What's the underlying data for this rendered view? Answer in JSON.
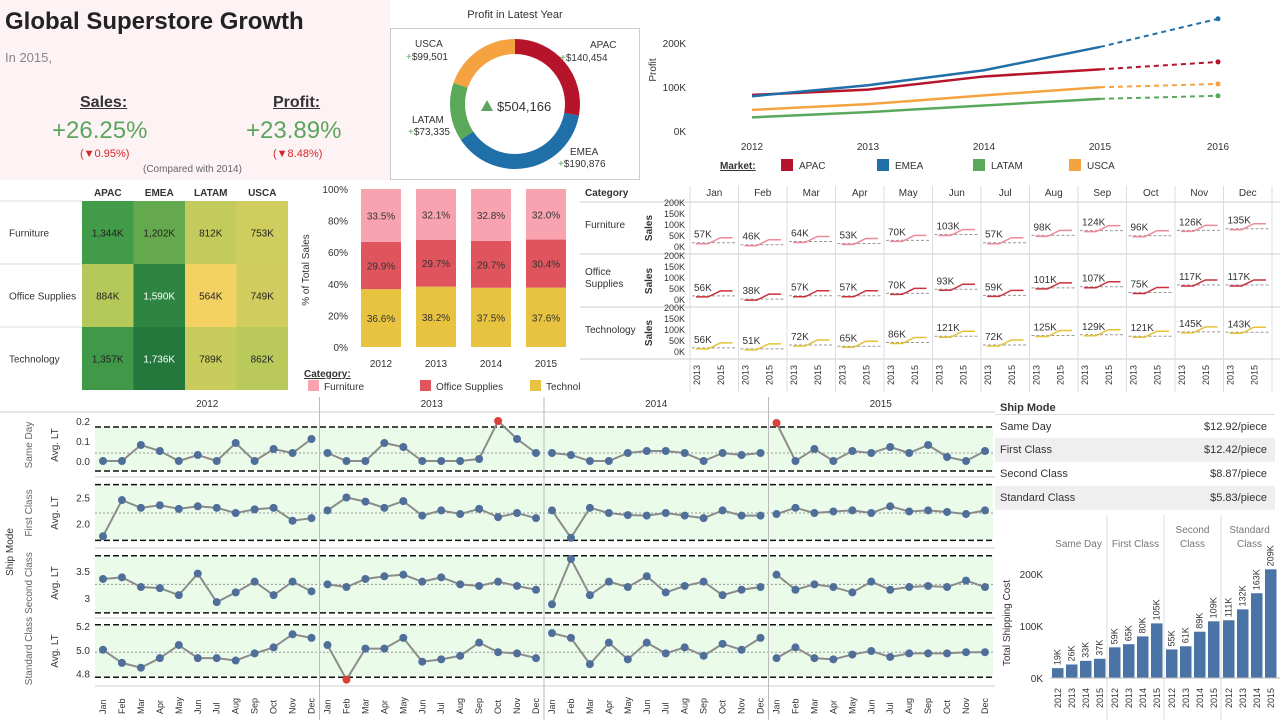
{
  "header": {
    "title": "Global Superstore Growth",
    "subtitle": "In 2015,",
    "sales_label": "Sales:",
    "sales_value": "+26.25%",
    "sales_change": "(▼0.95%)",
    "profit_label": "Profit:",
    "profit_value": "+23.89%",
    "profit_change": "(▼8.48%)",
    "note": "(Compared with 2014)"
  },
  "colors": {
    "APAC": "#b5142a",
    "EMEA": "#1f6fa8",
    "LATAM": "#5aa95a",
    "USCA": "#f4a340",
    "furniture": "#f9a3b0",
    "office": "#e0555d",
    "technology": "#e8c33f",
    "positive": "#5ba55e",
    "negative": "#d62728"
  },
  "chart_data": [
    {
      "id": "donut",
      "type": "pie",
      "title": "Profit in Latest Year",
      "center_label": "$504,166",
      "slices": [
        {
          "name": "APAC",
          "label": "+$140,454",
          "value": 140454
        },
        {
          "name": "EMEA",
          "label": "+$190,876",
          "value": 190876
        },
        {
          "name": "LATAM",
          "label": "+$73,335",
          "value": 73335
        },
        {
          "name": "USCA",
          "label": "+$99,501",
          "value": 99501
        }
      ]
    },
    {
      "id": "profit_trend",
      "type": "line",
      "ylabel": "Profit",
      "x": [
        "2012",
        "2013",
        "2014",
        "2015",
        "2016"
      ],
      "yticks": [
        "0K",
        "100K",
        "200K"
      ],
      "ylim": [
        0,
        260000
      ],
      "legend_title": "Market:",
      "series": [
        {
          "name": "APAC",
          "values": [
            82000,
            94000,
            124000,
            140000,
            157000
          ]
        },
        {
          "name": "EMEA",
          "values": [
            79000,
            104000,
            138000,
            191000,
            255000
          ]
        },
        {
          "name": "LATAM",
          "values": [
            31000,
            43000,
            58000,
            73000,
            80000
          ]
        },
        {
          "name": "USCA",
          "values": [
            48000,
            61000,
            81000,
            99500,
            107000
          ]
        }
      ],
      "forecast_from": "2015"
    },
    {
      "id": "heatmap",
      "type": "heatmap",
      "columns": [
        "APAC",
        "EMEA",
        "LATAM",
        "USCA"
      ],
      "rows": [
        "Furniture",
        "Office Supplies",
        "Technology"
      ],
      "labels": [
        [
          "1,344K",
          "1,202K",
          "812K",
          "753K"
        ],
        [
          "884K",
          "1,590K",
          "564K",
          "749K"
        ],
        [
          "1,357K",
          "1,736K",
          "789K",
          "862K"
        ]
      ],
      "values": [
        [
          1344,
          1202,
          812,
          753
        ],
        [
          884,
          1590,
          564,
          749
        ],
        [
          1357,
          1736,
          789,
          862
        ]
      ]
    },
    {
      "id": "stacked",
      "type": "bar",
      "ylabel": "% of Total Sales",
      "categories": [
        "2012",
        "2013",
        "2014",
        "2015"
      ],
      "yticks": [
        "0%",
        "20%",
        "40%",
        "60%",
        "80%",
        "100%"
      ],
      "legend_title": "Category:",
      "series": [
        {
          "name": "Technology",
          "values": [
            36.6,
            38.2,
            37.5,
            37.6
          ]
        },
        {
          "name": "Office Supplies",
          "values": [
            29.9,
            29.7,
            29.7,
            30.4
          ]
        },
        {
          "name": "Furniture",
          "values": [
            33.5,
            32.1,
            32.8,
            32.0
          ]
        }
      ]
    },
    {
      "id": "small_multiples",
      "type": "line",
      "header": "Category",
      "ylabel": "Sales",
      "months": [
        "Jan",
        "Feb",
        "Mar",
        "Apr",
        "May",
        "Jun",
        "Jul",
        "Aug",
        "Sep",
        "Oct",
        "Nov",
        "Dec"
      ],
      "xticks": [
        "2013",
        "2015"
      ],
      "yticks": [
        "200K",
        "150K",
        "100K",
        "50K",
        "0K"
      ],
      "rows": [
        {
          "name": "Furniture",
          "labels": [
            "57K",
            "46K",
            "64K",
            "53K",
            "70K",
            "103K",
            "57K",
            "98K",
            "124K",
            "96K",
            "126K",
            "135K"
          ]
        },
        {
          "name": "Office Supplies",
          "labels": [
            "56K",
            "38K",
            "57K",
            "57K",
            "70K",
            "93K",
            "59K",
            "101K",
            "107K",
            "75K",
            "117K",
            "117K"
          ]
        },
        {
          "name": "Technology",
          "labels": [
            "56K",
            "51K",
            "72K",
            "65K",
            "86K",
            "121K",
            "72K",
            "125K",
            "129K",
            "121K",
            "145K",
            "143K"
          ]
        }
      ]
    },
    {
      "id": "control",
      "type": "line",
      "ylabel_group": "Ship Mode",
      "ylabel": "Avg. LT",
      "years": [
        "2012",
        "2013",
        "2014",
        "2015"
      ],
      "months": [
        "Jan",
        "Feb",
        "Mar",
        "Apr",
        "May",
        "Jun",
        "Jul",
        "Aug",
        "Sep",
        "Oct",
        "Nov",
        "Dec"
      ],
      "rows": [
        {
          "name": "Same Day",
          "yticks": [
            "0.2",
            "0.1",
            "0.0"
          ],
          "ylim": [
            -0.06,
            0.22
          ],
          "ucl": 0.17,
          "lcl": -0.05,
          "mean": 0.04,
          "values": [
            [
              0.0,
              0.0,
              0.08,
              0.05,
              0.0,
              0.03,
              0.0,
              0.09,
              0.0,
              0.06,
              0.04,
              0.11
            ],
            [
              0.04,
              0.0,
              0.0,
              0.09,
              0.07,
              0.0,
              0.0,
              0.0,
              0.01,
              0.2,
              0.11,
              0.04
            ],
            [
              0.04,
              0.03,
              0.0,
              0.0,
              0.04,
              0.05,
              0.05,
              0.04,
              0.0,
              0.04,
              0.03,
              0.04
            ],
            [
              0.19,
              0.0,
              0.06,
              0.0,
              0.05,
              0.04,
              0.07,
              0.04,
              0.08,
              0.02,
              0.0,
              0.05
            ]
          ]
        },
        {
          "name": "First Class",
          "yticks": [
            "2.5",
            "2.0"
          ],
          "ylim": [
            1.6,
            2.8
          ],
          "ucl": 2.75,
          "lcl": 1.67,
          "mean": 2.2,
          "values": [
            [
              1.75,
              2.45,
              2.3,
              2.35,
              2.28,
              2.33,
              2.3,
              2.2,
              2.27,
              2.3,
              2.05,
              2.1
            ],
            [
              2.25,
              2.5,
              2.42,
              2.3,
              2.43,
              2.15,
              2.25,
              2.18,
              2.28,
              2.12,
              2.2,
              2.1
            ],
            [
              2.25,
              1.72,
              2.3,
              2.2,
              2.16,
              2.15,
              2.2,
              2.15,
              2.1,
              2.25,
              2.15,
              2.15
            ],
            [
              2.18,
              2.3,
              2.2,
              2.23,
              2.25,
              2.2,
              2.33,
              2.23,
              2.25,
              2.22,
              2.18,
              2.25
            ]
          ]
        },
        {
          "name": "Second Class",
          "yticks": [
            "3.5",
            "3"
          ],
          "ylim": [
            2.7,
            3.85
          ],
          "ucl": 3.78,
          "lcl": 2.72,
          "mean": 3.25,
          "values": [
            [
              3.35,
              3.38,
              3.2,
              3.18,
              3.05,
              3.45,
              2.92,
              3.1,
              3.3,
              3.05,
              3.3,
              3.12
            ],
            [
              3.25,
              3.2,
              3.35,
              3.4,
              3.43,
              3.3,
              3.38,
              3.25,
              3.22,
              3.3,
              3.22,
              3.15
            ],
            [
              2.88,
              3.72,
              3.05,
              3.3,
              3.2,
              3.4,
              3.1,
              3.22,
              3.3,
              3.05,
              3.15,
              3.2
            ],
            [
              3.43,
              3.15,
              3.25,
              3.2,
              3.1,
              3.3,
              3.15,
              3.2,
              3.22,
              3.2,
              3.32,
              3.2
            ]
          ]
        },
        {
          "name": "Standard Class",
          "yticks": [
            "5.2",
            "5.0",
            "4.8"
          ],
          "ylim": [
            4.73,
            5.25
          ],
          "ucl": 5.21,
          "lcl": 4.77,
          "mean": 4.98,
          "values": [
            [
              5.0,
              4.89,
              4.85,
              4.93,
              5.04,
              4.93,
              4.93,
              4.91,
              4.97,
              5.02,
              5.13,
              5.1
            ],
            [
              5.04,
              4.75,
              5.01,
              5.01,
              5.1,
              4.9,
              4.92,
              4.95,
              5.06,
              4.98,
              4.97,
              4.93
            ],
            [
              5.14,
              5.1,
              4.88,
              5.06,
              4.92,
              5.06,
              4.97,
              5.02,
              4.95,
              5.05,
              5.0,
              5.1
            ],
            [
              4.93,
              5.02,
              4.93,
              4.92,
              4.96,
              4.99,
              4.94,
              4.97,
              4.97,
              4.97,
              4.98,
              4.98
            ]
          ]
        }
      ]
    },
    {
      "id": "ship_bars",
      "type": "bar",
      "ylabel": "Total Shipping Cost",
      "groups": [
        "Same Day",
        "First Class",
        "Second Class",
        "Standard Class"
      ],
      "years": [
        "2012",
        "2013",
        "2014",
        "2015"
      ],
      "yticks": [
        "200K",
        "100K",
        "0K"
      ],
      "ylim": [
        0,
        220
      ],
      "values": [
        [
          19,
          26,
          33,
          37
        ],
        [
          59,
          65,
          80,
          105
        ],
        [
          55,
          61,
          89,
          109
        ],
        [
          111,
          132,
          163,
          209
        ]
      ],
      "labels": [
        [
          "19K",
          "26K",
          "33K",
          "37K"
        ],
        [
          "59K",
          "65K",
          "80K",
          "105K"
        ],
        [
          "55K",
          "61K",
          "89K",
          "109K"
        ],
        [
          "111K",
          "132K",
          "163K",
          "209K"
        ]
      ]
    }
  ],
  "ship_cost": {
    "title": "Ship Mode",
    "rows": [
      {
        "name": "Same Day",
        "value": "$12.92/piece"
      },
      {
        "name": "First Class",
        "value": "$12.42/piece"
      },
      {
        "name": "Second Class",
        "value": "$8.87/piece"
      },
      {
        "name": "Standard Class",
        "value": "$5.83/piece"
      }
    ]
  }
}
